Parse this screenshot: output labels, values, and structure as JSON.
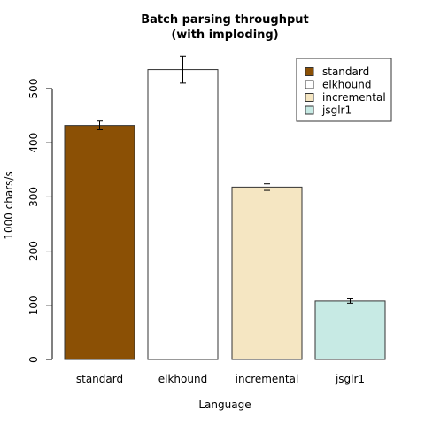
{
  "chart_data": {
    "type": "bar",
    "title": [
      "Batch parsing throughput",
      "(with imploding)"
    ],
    "xlabel": "Language",
    "ylabel": "1000 chars/s",
    "categories": [
      "standard",
      "elkhound",
      "incremental",
      "jsglr1"
    ],
    "values": [
      432,
      535,
      318,
      108
    ],
    "errors": [
      8,
      25,
      6,
      4
    ],
    "colors": [
      "#8B5005",
      "#FFFFFF",
      "#F5E6C2",
      "#C7EAE4"
    ],
    "yticks": [
      0,
      100,
      200,
      300,
      400,
      500
    ],
    "ylim": [
      0,
      500
    ],
    "grid": false,
    "legend": {
      "placement": "top-right",
      "entries": [
        "standard",
        "elkhound",
        "incremental",
        "jsglr1"
      ]
    }
  }
}
